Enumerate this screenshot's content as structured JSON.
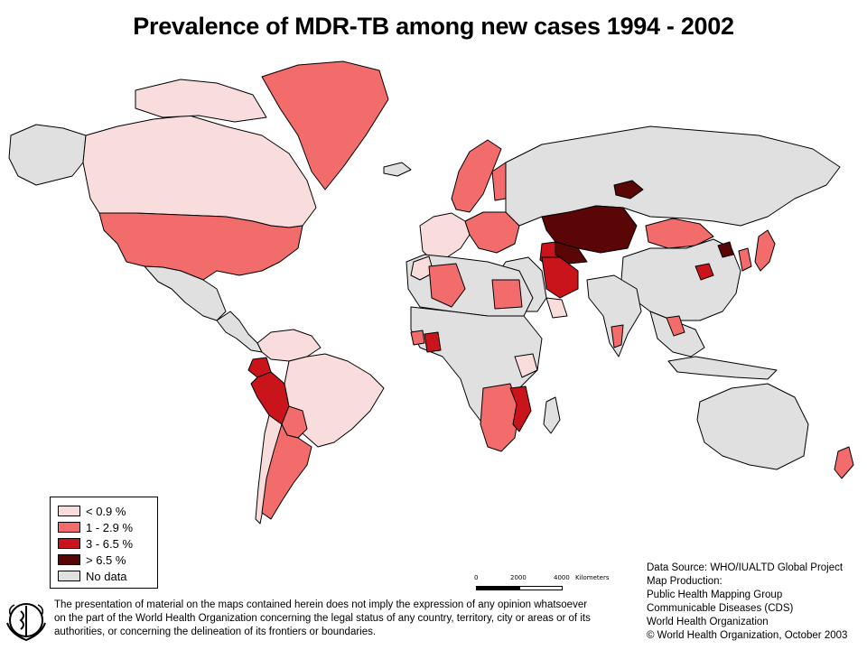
{
  "title": "Prevalence of MDR-TB among new cases 1994 - 2002",
  "colors": {
    "lt_0_9": "#f9dcdc",
    "1_2_9": "#f26c6c",
    "3_6_5": "#c8141a",
    "gt_6_5": "#5a0606",
    "no_data": "#e0e0e0",
    "border": "#000000",
    "ocean": "#ffffff"
  },
  "legend": {
    "items": [
      {
        "label": "< 0.9 %",
        "color_key": "lt_0_9"
      },
      {
        "label": "1 - 2.9 %",
        "color_key": "1_2_9"
      },
      {
        "label": "3 - 6.5 %",
        "color_key": "3_6_5"
      },
      {
        "label": "> 6.5 %",
        "color_key": "gt_6_5"
      },
      {
        "label": "No data",
        "color_key": "no_data"
      }
    ]
  },
  "scale_bar": {
    "ticks": [
      "0",
      "2000",
      "4000"
    ],
    "unit": "Kilometers"
  },
  "disclaimer": {
    "line1": "The presentation of material on the maps contained herein does not imply the expression of any opinion whatsoever",
    "line2": "on the part of the World Health Organization concerning the legal status of any country, territory, city or areas or of its",
    "line3": "authorities, or concerning the delineation of its frontiers or boundaries."
  },
  "credits": {
    "line1": "Data Source: WHO/IUALTD Global Project",
    "line2": "Map Production:",
    "line3": "Public Health Mapping Group",
    "line4": "Communicable Diseases (CDS)",
    "line5": "World Health Organization",
    "line6": "© World Health Organization, October 2003"
  },
  "logo": {
    "icon": "who-emblem-icon"
  },
  "map_regions": [
    {
      "name": "canada",
      "category": "lt_0_9"
    },
    {
      "name": "alaska",
      "category": "no_data"
    },
    {
      "name": "arctic-islands",
      "category": "lt_0_9"
    },
    {
      "name": "greenland",
      "category": "1_2_9"
    },
    {
      "name": "usa",
      "category": "1_2_9"
    },
    {
      "name": "mexico",
      "category": "no_data"
    },
    {
      "name": "central-america",
      "category": "no_data"
    },
    {
      "name": "colombia-venezuela",
      "category": "lt_0_9"
    },
    {
      "name": "ecuador",
      "category": "3_6_5"
    },
    {
      "name": "peru",
      "category": "3_6_5"
    },
    {
      "name": "brazil",
      "category": "lt_0_9"
    },
    {
      "name": "bolivia",
      "category": "1_2_9"
    },
    {
      "name": "argentina",
      "category": "1_2_9"
    },
    {
      "name": "chile",
      "category": "lt_0_9"
    },
    {
      "name": "iceland",
      "category": "no_data"
    },
    {
      "name": "scandinavia",
      "category": "1_2_9"
    },
    {
      "name": "finland",
      "category": "1_2_9"
    },
    {
      "name": "western-europe",
      "category": "lt_0_9"
    },
    {
      "name": "eastern-europe",
      "category": "1_2_9"
    },
    {
      "name": "russia",
      "category": "no_data"
    },
    {
      "name": "tomsk",
      "category": "gt_6_5"
    },
    {
      "name": "kazakhstan",
      "category": "gt_6_5"
    },
    {
      "name": "uzbekistan",
      "category": "gt_6_5"
    },
    {
      "name": "turkmenistan",
      "category": "3_6_5"
    },
    {
      "name": "mongolia",
      "category": "1_2_9"
    },
    {
      "name": "china",
      "category": "no_data"
    },
    {
      "name": "china-henan",
      "category": "3_6_5"
    },
    {
      "name": "china-liaoning",
      "category": "gt_6_5"
    },
    {
      "name": "korea",
      "category": "1_2_9"
    },
    {
      "name": "japan",
      "category": "1_2_9"
    },
    {
      "name": "iran",
      "category": "3_6_5"
    },
    {
      "name": "middle-east",
      "category": "no_data"
    },
    {
      "name": "oman",
      "category": "lt_0_9"
    },
    {
      "name": "india",
      "category": "no_data"
    },
    {
      "name": "india-tamilnadu",
      "category": "1_2_9"
    },
    {
      "name": "se-asia",
      "category": "no_data"
    },
    {
      "name": "thailand",
      "category": "1_2_9"
    },
    {
      "name": "indonesia",
      "category": "no_data"
    },
    {
      "name": "australia",
      "category": "no_data"
    },
    {
      "name": "new-zealand",
      "category": "1_2_9"
    },
    {
      "name": "algeria",
      "category": "1_2_9"
    },
    {
      "name": "morocco",
      "category": "lt_0_9"
    },
    {
      "name": "egypt",
      "category": "1_2_9"
    },
    {
      "name": "north-africa",
      "category": "no_data"
    },
    {
      "name": "central-africa",
      "category": "no_data"
    },
    {
      "name": "sierra-leone",
      "category": "1_2_9"
    },
    {
      "name": "cote-divoire",
      "category": "3_6_5"
    },
    {
      "name": "kenya",
      "category": "lt_0_9"
    },
    {
      "name": "southern-africa",
      "category": "1_2_9"
    },
    {
      "name": "mozambique",
      "category": "3_6_5"
    },
    {
      "name": "madagascar",
      "category": "no_data"
    }
  ]
}
